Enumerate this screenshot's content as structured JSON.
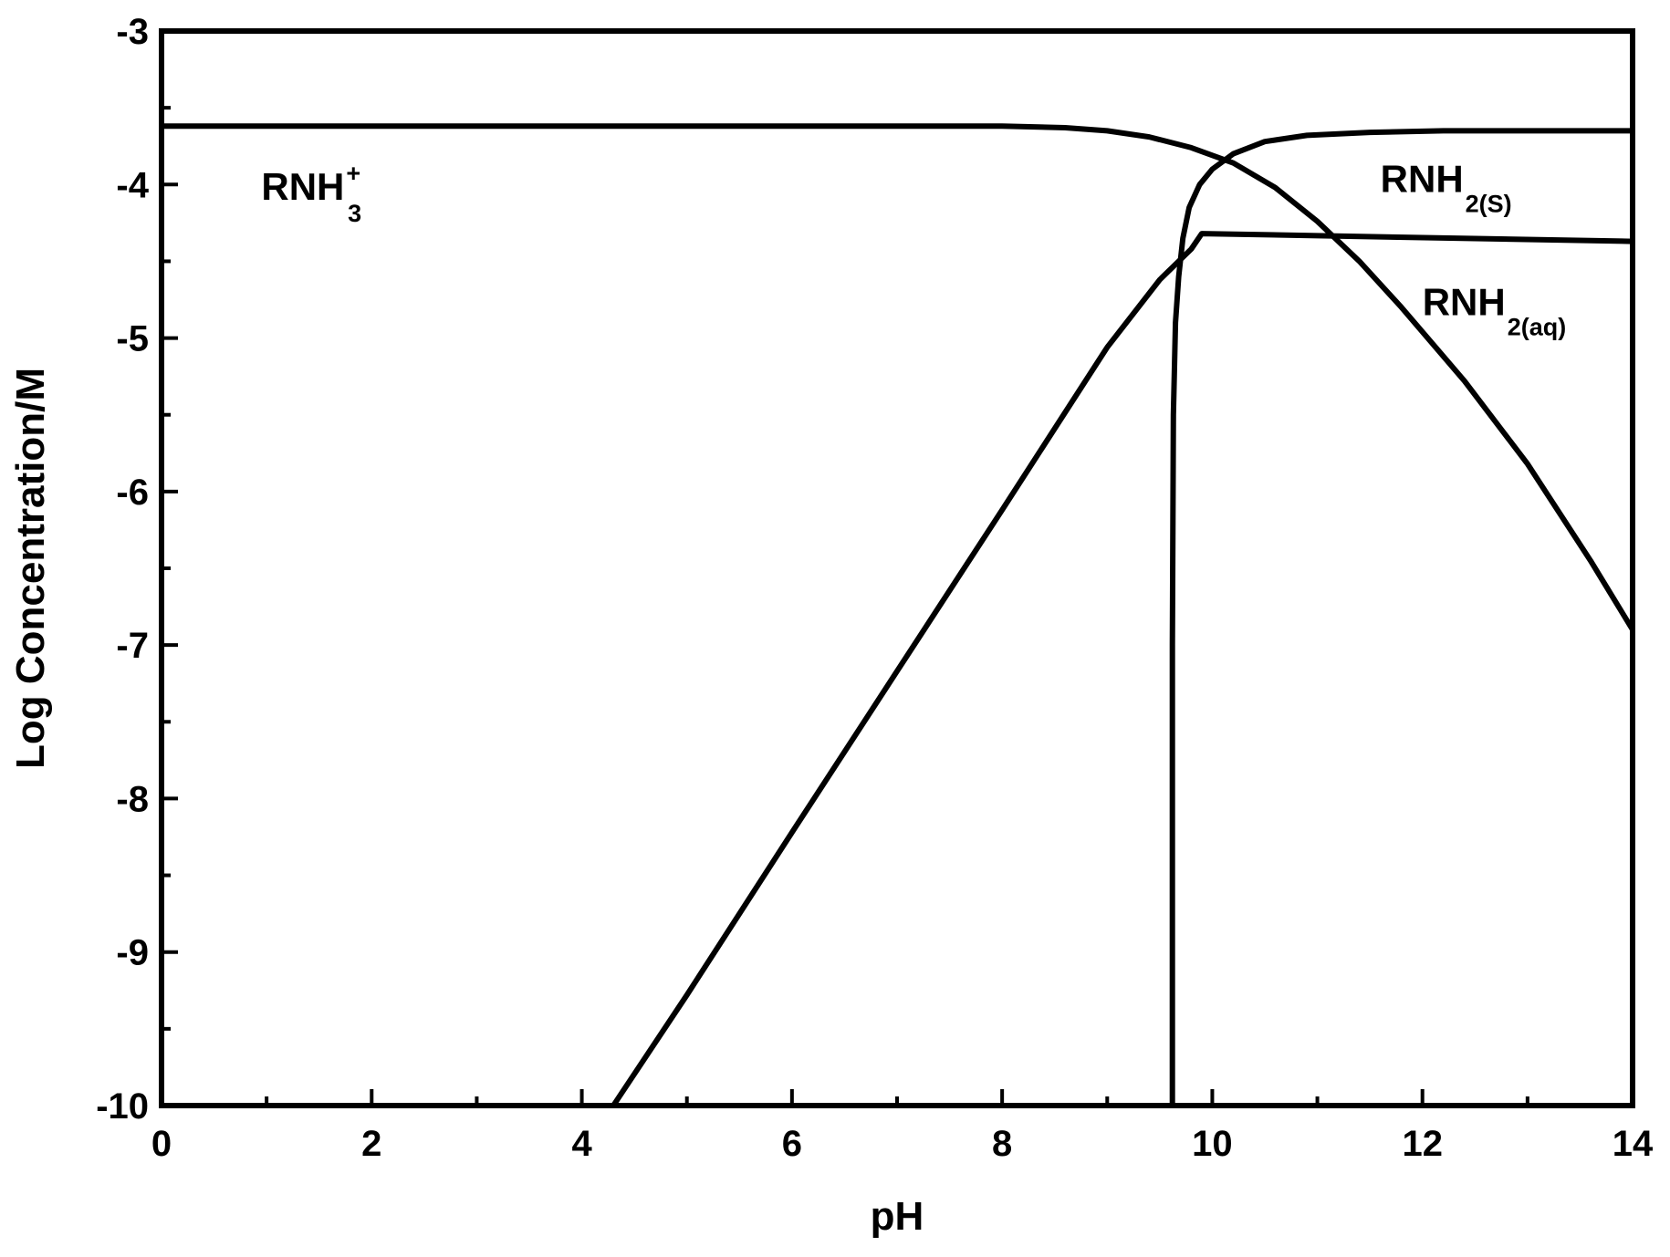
{
  "chart_data": {
    "type": "line",
    "title": "",
    "xlabel": "pH",
    "ylabel": "Log Concentration/M",
    "xlim": [
      0,
      14
    ],
    "ylim": [
      -10,
      -3
    ],
    "x_ticks": [
      "0",
      "2",
      "4",
      "6",
      "8",
      "10",
      "12",
      "14"
    ],
    "y_ticks": [
      "-3",
      "-4",
      "-5",
      "-6",
      "-7",
      "-8",
      "-9",
      "-10"
    ],
    "grid": false,
    "legend": "none",
    "annotations": [
      {
        "id": "rnh3",
        "main": "RNH",
        "sub": "3",
        "sup": "+",
        "x": 0.95,
        "y": -4.1
      },
      {
        "id": "rnh2s",
        "main": "RNH",
        "sub": "2(S)",
        "sup": "",
        "x": 11.6,
        "y": -4.05
      },
      {
        "id": "rnh2aq",
        "main": "RNH",
        "sub": "2(aq)",
        "sup": "",
        "x": 12.0,
        "y": -4.85
      }
    ],
    "series": [
      {
        "x": [
          0,
          2,
          4,
          6,
          8,
          8.6,
          9.0,
          9.4,
          9.8,
          10.2,
          10.6,
          11.0,
          11.4,
          11.8,
          12.4,
          13.0,
          13.6,
          14.0
        ],
        "y": [
          -3.62,
          -3.62,
          -3.62,
          -3.62,
          -3.62,
          -3.63,
          -3.65,
          -3.69,
          -3.76,
          -3.86,
          -4.02,
          -4.24,
          -4.5,
          -4.8,
          -5.28,
          -5.82,
          -6.45,
          -6.9
        ]
      },
      {
        "x": [
          4.3,
          5,
          6,
          7,
          8,
          9,
          9.5,
          9.8,
          9.9,
          14.0
        ],
        "y": [
          -10.0,
          -9.28,
          -8.22,
          -7.17,
          -6.12,
          -5.06,
          -4.62,
          -4.42,
          -4.32,
          -4.37
        ]
      },
      {
        "x": [
          9.62,
          9.62,
          9.63,
          9.65,
          9.68,
          9.72,
          9.78,
          9.88,
          10.0,
          10.2,
          10.5,
          10.9,
          11.5,
          12.2,
          13.0,
          14.0
        ],
        "y": [
          -10.0,
          -7.0,
          -5.5,
          -4.9,
          -4.6,
          -4.35,
          -4.15,
          -4.0,
          -3.9,
          -3.8,
          -3.72,
          -3.68,
          -3.66,
          -3.65,
          -3.65,
          -3.65
        ]
      }
    ]
  }
}
